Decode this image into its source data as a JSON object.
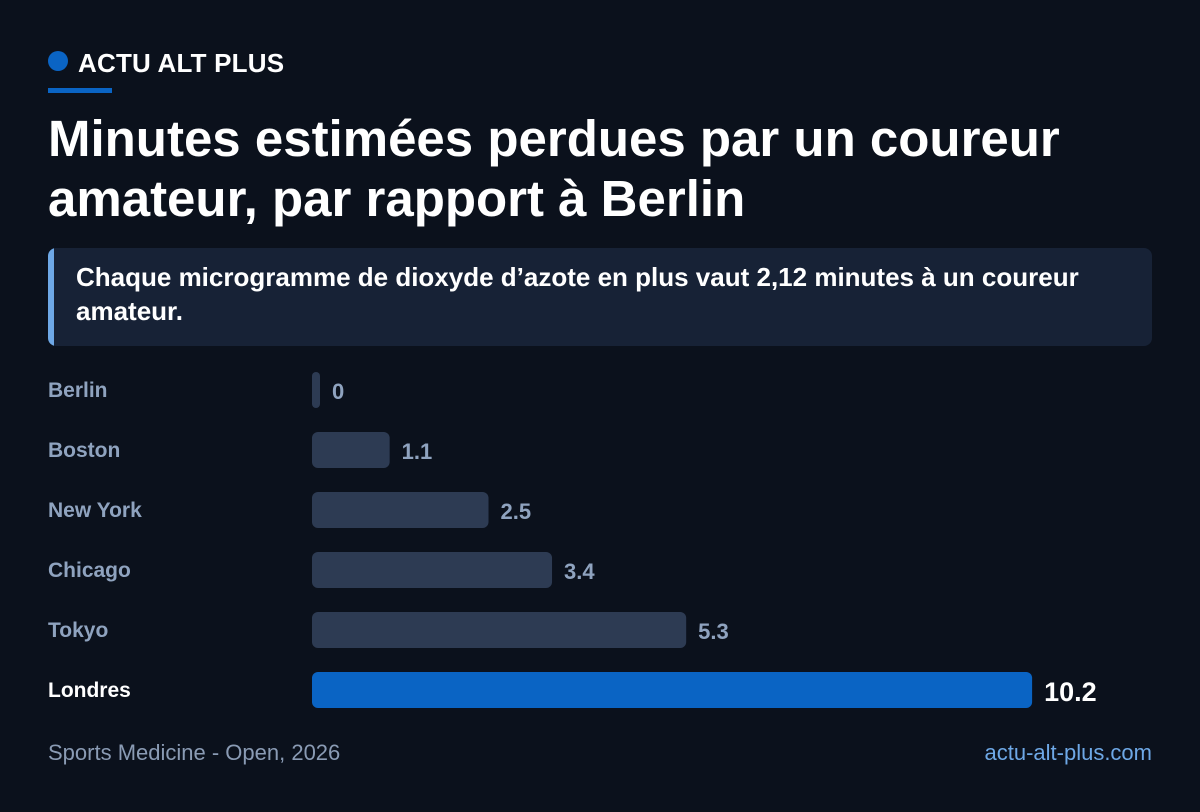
{
  "brand": {
    "name": "ACTU ALT PLUS",
    "color": "#0a64c4"
  },
  "title": "Minutes estimées perdues par un coureur amateur, par rapport à Berlin",
  "callout": "Chaque microgramme de dioxyde d’azote en plus vaut 2,12 minutes à un coureur amateur.",
  "footer": {
    "source": "Sports Medicine - Open, 2026",
    "site": "actu-alt-plus.com"
  },
  "chart_data": {
    "type": "bar",
    "orientation": "horizontal",
    "title": "",
    "xlabel": "",
    "ylabel": "",
    "categories": [
      "Berlin",
      "Boston",
      "New York",
      "Chicago",
      "Tokyo",
      "Londres"
    ],
    "values": [
      0,
      1.1,
      2.5,
      3.4,
      5.3,
      10.2
    ],
    "value_labels": [
      "0",
      "1.1",
      "2.5",
      "3.4",
      "5.3",
      "10.2"
    ],
    "highlight": "Londres",
    "colors": {
      "bar": "#2d3b53",
      "highlight_bar": "#0a64c4",
      "label": "#8fa3bf",
      "highlight_label": "#ffffff"
    },
    "grid": false,
    "legend": "none"
  }
}
